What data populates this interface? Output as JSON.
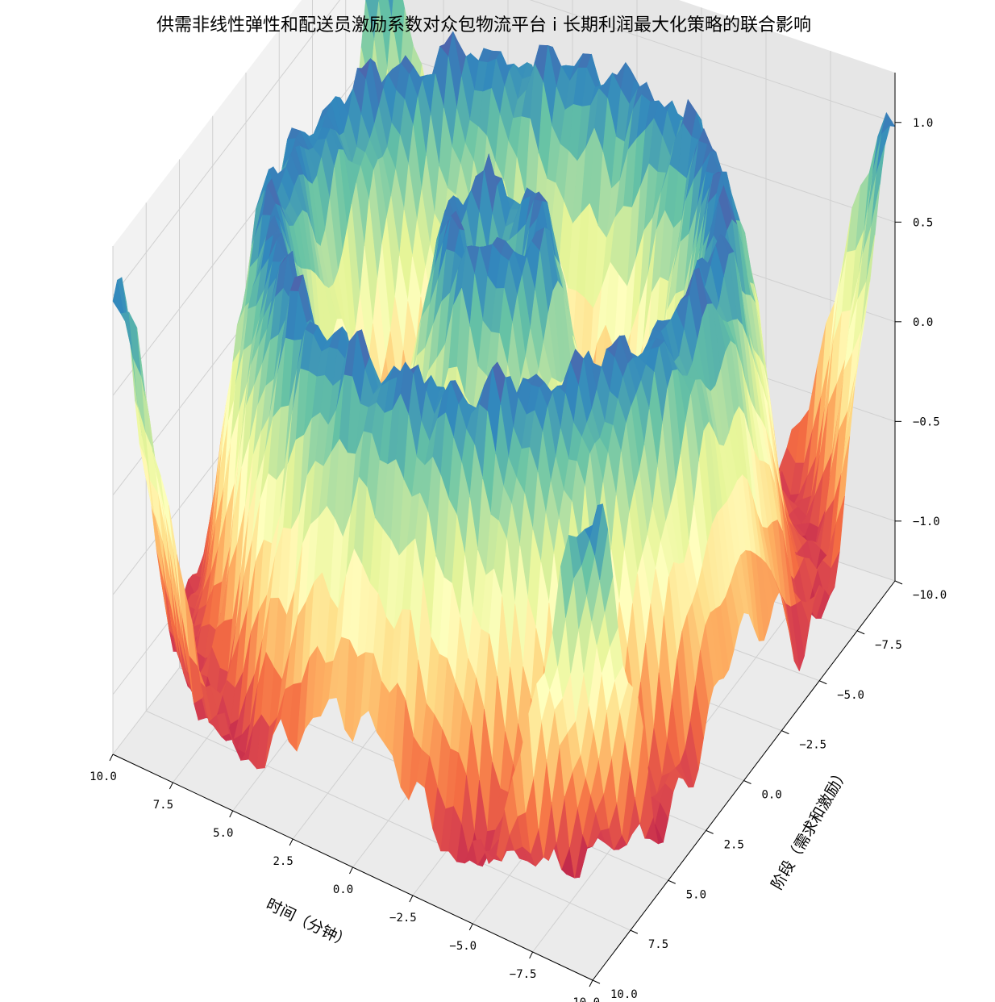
{
  "chart_data": {
    "type": "surface3d",
    "title": "供需非线性弹性和配送员激励系数对众包物流平台 i 长期利润最大化策略的联合影响",
    "xlabel": "时间（分钟）",
    "ylabel": "阶段（需求和激励）",
    "zlabel": "",
    "xlim": [
      -10,
      10
    ],
    "ylim": [
      -10,
      10
    ],
    "zlim": [
      -1.3,
      1.25
    ],
    "x_ticks": [
      "10.0",
      "7.5",
      "5.0",
      "2.5",
      "0.0",
      "−2.5",
      "−5.0",
      "−7.5",
      "−10.0"
    ],
    "y_ticks": [
      "−10.0",
      "−7.5",
      "−5.0",
      "−2.5",
      "0.0",
      "2.5",
      "5.0",
      "7.5",
      "10.0"
    ],
    "z_ticks": [
      "1.0",
      "0.5",
      "0.0",
      "−0.5",
      "−1.0"
    ],
    "surface_function": "z = sin(sqrt(x^2 + y^2)) with high-frequency ripples",
    "colormap": "Spectral",
    "grid": true,
    "colors": {
      "pane_back": "#f2f2f2",
      "pane_side": "#e6e6e6",
      "pane_floor": "#ebebeb",
      "grid": "#d0d0d0"
    }
  }
}
